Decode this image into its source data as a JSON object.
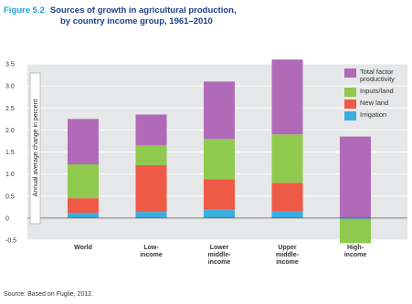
{
  "figure_label": "Figure 5.2",
  "title_line1": "Sources of growth in agricultural production,",
  "title_line2": "by country income group, 1961–2010",
  "source": "Source: Based on Fuglie, 2012.",
  "colors": {
    "tfp": "#b06ab8",
    "inputs": "#8fc94e",
    "newland": "#ee5a45",
    "irrigation": "#3aaee0"
  },
  "chart_data": {
    "type": "bar",
    "stacked": true,
    "ylabel": "Annual average change in percent",
    "ylim": [
      -0.5,
      3.5
    ],
    "yticks": [
      "3.5",
      "3.0",
      "2.5",
      "2.0",
      "1.5",
      "1.0",
      "0.5",
      "0",
      "-0.5"
    ],
    "ytick_values": [
      3.5,
      3.0,
      2.5,
      2.0,
      1.5,
      1.0,
      0.5,
      0,
      -0.5
    ],
    "grid": true,
    "legend_position": "right",
    "categories": [
      [
        "World"
      ],
      [
        "Low-",
        "income"
      ],
      [
        "Lower",
        "middle-",
        "income"
      ],
      [
        "Upper",
        "middle-",
        "income"
      ],
      [
        "High-",
        "income"
      ]
    ],
    "series": [
      {
        "name": "Irrigation",
        "key": "irrigation",
        "values": [
          0.12,
          0.14,
          0.2,
          0.15,
          -0.02
        ]
      },
      {
        "name": "New land",
        "key": "newland",
        "values": [
          0.33,
          1.06,
          0.68,
          0.65,
          0.0
        ]
      },
      {
        "name": "Inputs/land",
        "key": "inputs",
        "values": [
          0.77,
          0.45,
          0.92,
          1.1,
          -0.55
        ]
      },
      {
        "name": "Total factor productivity",
        "legend_lines": [
          "Total factor",
          "productivity"
        ],
        "key": "tfp",
        "values": [
          1.03,
          0.7,
          1.3,
          1.7,
          1.85
        ]
      }
    ]
  }
}
